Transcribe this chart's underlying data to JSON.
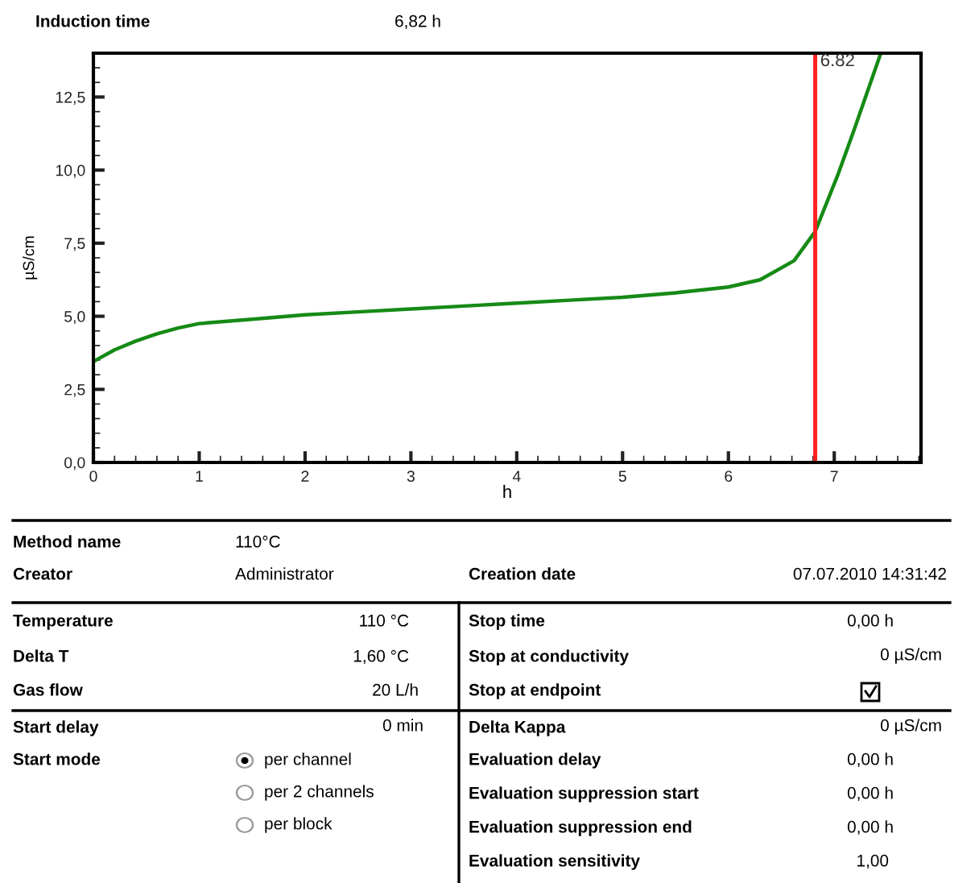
{
  "chart_data": {
    "type": "line",
    "xlabel": "h",
    "ylabel": "µS/cm",
    "x": [
      0,
      0.2,
      0.4,
      0.6,
      0.8,
      1.0,
      1.5,
      2.0,
      2.5,
      3.0,
      3.5,
      4.0,
      4.5,
      5.0,
      5.5,
      6.0,
      6.3,
      6.62,
      6.82,
      7.03,
      7.18,
      7.44
    ],
    "series": [
      {
        "color": "#168a16",
        "values": [
          3.45,
          3.85,
          4.15,
          4.4,
          4.6,
          4.75,
          4.9,
          5.05,
          5.15,
          5.25,
          5.35,
          5.45,
          5.55,
          5.65,
          5.8,
          6.0,
          6.25,
          6.9,
          7.9,
          9.8,
          11.3,
          14.0
        ]
      }
    ],
    "xlim": [
      0,
      7.82
    ],
    "ylim": [
      0,
      14
    ],
    "xticks": [
      0,
      1,
      2,
      3,
      4,
      5,
      6,
      7
    ],
    "yticks": [
      {
        "value": 0,
        "label": "0,0"
      },
      {
        "value": 2.5,
        "label": "2,5"
      },
      {
        "value": 5,
        "label": "5,0"
      },
      {
        "value": 7.5,
        "label": "7,5"
      },
      {
        "value": 10,
        "label": "10,0"
      },
      {
        "value": 12.5,
        "label": "12,5"
      }
    ],
    "grid": false,
    "legend": false,
    "marker": "none",
    "line_style": "solid",
    "ref_lines": [
      {
        "axis": "x",
        "value": 6.82,
        "label": "6.82",
        "color": "#ff2020"
      }
    ],
    "annotations": [
      "Induction time",
      "6,82 h",
      "Method name",
      "110°C",
      "Creator",
      "Administrator",
      "Creation date",
      "07.07.2010 14:31:42",
      "Temperature",
      "110 °C",
      "Delta T",
      "1,60 °C",
      "Gas flow",
      "20 L/h",
      "Start delay",
      "0 min",
      "Start mode",
      "per channel",
      "per 2 channels",
      "per block",
      "Stop time",
      "0,00 h",
      "Stop at conductivity",
      "0 µS/cm",
      "Stop at endpoint",
      "Delta Kappa",
      "0 µS/cm",
      "Evaluation delay",
      "0,00 h",
      "Evaluation suppression start",
      "0,00 h",
      "Evaluation suppression end",
      "0,00 h",
      "Evaluation sensitivity",
      "1,00"
    ]
  }
}
